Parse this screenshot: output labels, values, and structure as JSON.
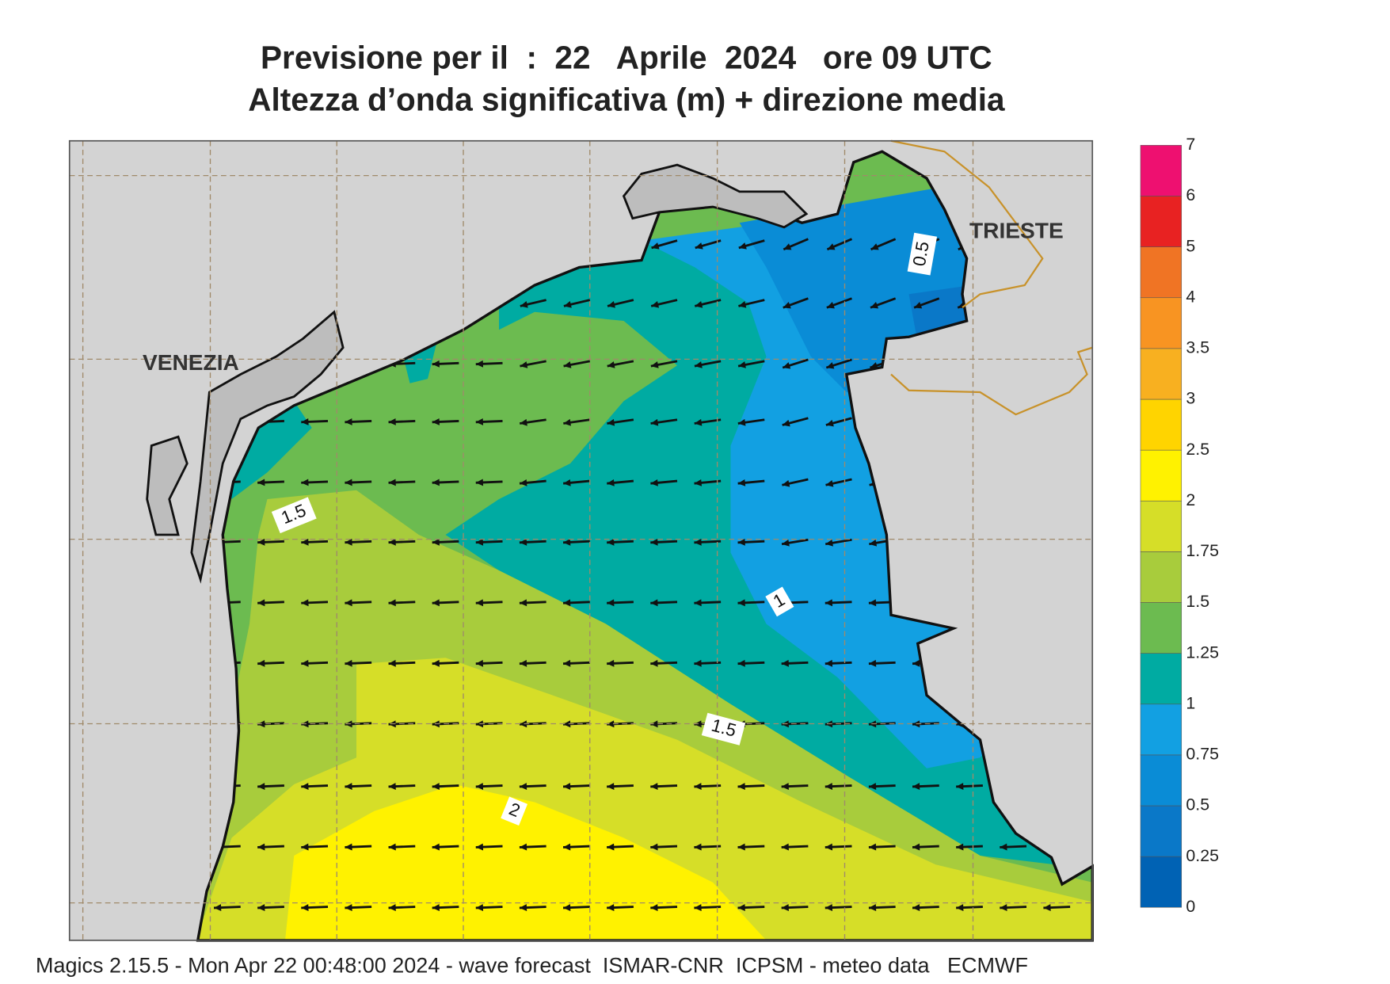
{
  "header": {
    "title": "Previsione per il  :  22   Aprile  2024   ore 09 UTC",
    "subtitle": "Altezza d’onda significativa (m) + direzione media"
  },
  "map": {
    "cities": [
      "VENEZIA",
      "TRIESTE"
    ],
    "contour_labels": [
      "0.5",
      "1",
      "1.5",
      "1.5",
      "2"
    ]
  },
  "colorbar": {
    "ticks": [
      "0",
      "0.25",
      "0.5",
      "0.75",
      "1",
      "1.25",
      "1.5",
      "1.75",
      "2",
      "2.5",
      "3",
      "3.5",
      "4",
      "5",
      "6",
      "7"
    ],
    "colors": [
      "#0062b4",
      "#0a78c8",
      "#0a8cd6",
      "#12a0e2",
      "#00aba2",
      "#6cbb50",
      "#a8cc3c",
      "#d6de28",
      "#fff200",
      "#ffd400",
      "#f8b020",
      "#f89422",
      "#f07424",
      "#e82222",
      "#ee1070"
    ]
  },
  "footer": "Magics 2.15.5 - Mon Apr 22 00:48:00 2024 - wave forecast  ISMAR-CNR  ICPSM - meteo data   ECMWF"
}
